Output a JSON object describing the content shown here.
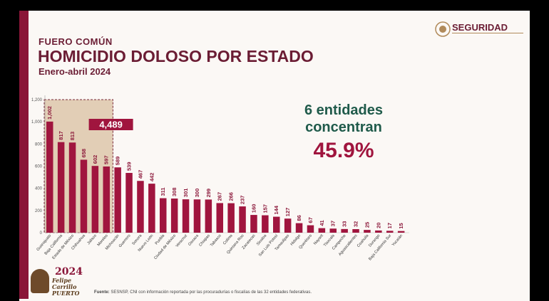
{
  "header": {
    "kicker": "FUERO COMÚN",
    "title": "HOMICIDIO DOLOSO POR ESTADO",
    "period": "Enero-abril 2024"
  },
  "logo": {
    "text": "SEGURIDAD"
  },
  "callout": {
    "line1": "6 entidades",
    "line2": "concentran",
    "percent": "45.9%"
  },
  "highlight": {
    "label": "4,489",
    "count": 6
  },
  "badge": {
    "year": "2024",
    "name_line1": "Felipe Carrillo",
    "name_line2": "PUERTO"
  },
  "source": {
    "label": "Fuente:",
    "text": "SESNSP, CNI con información reportada por las procuradurías o fiscalías de las 32 entidades federativas."
  },
  "colors": {
    "bar": "#a0153e",
    "highlight_fill": "#d9c0a0",
    "title": "#6b1d34",
    "callout": "#1f5a4a"
  },
  "chart_data": {
    "type": "bar",
    "categories": [
      "Guanajuato",
      "Baja California",
      "Estado de México",
      "Chihuahua",
      "Jalisco",
      "Morelos",
      "Michoacán",
      "Guerrero",
      "Sonora",
      "Nuevo León",
      "Puebla",
      "Ciudad de México",
      "Veracruz",
      "Oaxaca",
      "Chiapas",
      "Tabasco",
      "Colima",
      "Quintana Roo",
      "Zacatecas",
      "Sinaloa",
      "San Luis Potosí",
      "Tamaulipas",
      "Hidalgo",
      "Querétaro",
      "Nayarit",
      "Tlaxcala",
      "Campeche",
      "Aguascalientes",
      "Coahuila",
      "Durango",
      "Baja California Sur",
      "Yucatán"
    ],
    "values": [
      1002,
      817,
      813,
      658,
      602,
      597,
      589,
      539,
      467,
      442,
      311,
      308,
      301,
      300,
      299,
      267,
      266,
      237,
      160,
      157,
      144,
      127,
      86,
      67,
      41,
      37,
      33,
      32,
      25,
      20,
      17,
      15
    ],
    "value_labels": [
      "1,002",
      "817",
      "813",
      "658",
      "602",
      "597",
      "589",
      "539",
      "467",
      "442",
      "311",
      "308",
      "301",
      "300",
      "299",
      "267",
      "266",
      "237",
      "160",
      "157",
      "144",
      "127",
      "86",
      "67",
      "41",
      "37",
      "33",
      "32",
      "25",
      "20",
      "17",
      "15"
    ],
    "y_ticks": [
      "0",
      "200",
      "400",
      "600",
      "800",
      "1,000",
      "1,200"
    ],
    "ylim": [
      0,
      1200
    ],
    "grid": false,
    "legend": "none"
  }
}
